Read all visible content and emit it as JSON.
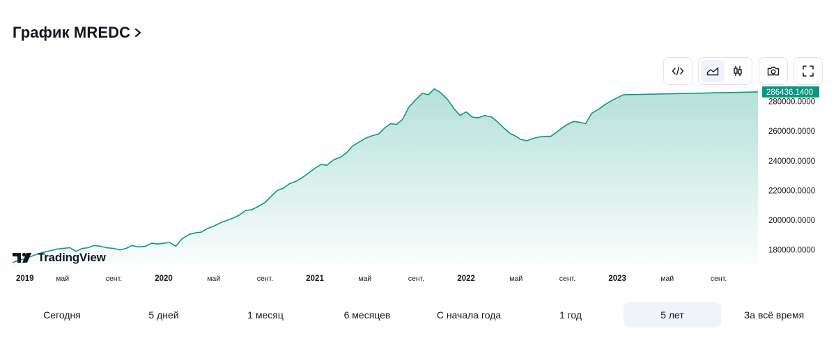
{
  "header": {
    "title": "График MREDC"
  },
  "toolbar": {
    "buttons": [
      {
        "name": "embed-button",
        "icon": "code-icon"
      },
      {
        "name": "area-chart-button",
        "icon": "area-chart-icon",
        "active": true
      },
      {
        "name": "candles-chart-button",
        "icon": "candles-icon"
      },
      {
        "name": "snapshot-button",
        "icon": "camera-icon"
      },
      {
        "name": "fullscreen-button",
        "icon": "fullscreen-icon"
      }
    ]
  },
  "branding": {
    "logo_text": "TradingView"
  },
  "chart_data": {
    "type": "area",
    "title": "График MREDC",
    "xlabel": "",
    "ylabel": "",
    "ylim": [
      170000,
      292000
    ],
    "xlim": [
      2019.0,
      2023.93
    ],
    "y_ticks": [
      180000,
      200000,
      220000,
      240000,
      260000,
      280000
    ],
    "y_tick_labels": [
      "180000.0000",
      "200000.0000",
      "220000.0000",
      "240000.0000",
      "260000.0000",
      "280000.0000"
    ],
    "x_ticks": [
      {
        "x": 2019.0,
        "label": "2019",
        "bold": true
      },
      {
        "x": 2019.33,
        "label": "май",
        "bold": false
      },
      {
        "x": 2019.67,
        "label": "сент.",
        "bold": false
      },
      {
        "x": 2020.0,
        "label": "2020",
        "bold": true
      },
      {
        "x": 2020.33,
        "label": "май",
        "bold": false
      },
      {
        "x": 2020.67,
        "label": "сент.",
        "bold": false
      },
      {
        "x": 2021.0,
        "label": "2021",
        "bold": true
      },
      {
        "x": 2021.33,
        "label": "май",
        "bold": false
      },
      {
        "x": 2021.67,
        "label": "сент.",
        "bold": false
      },
      {
        "x": 2022.0,
        "label": "2022",
        "bold": true
      },
      {
        "x": 2022.33,
        "label": "май",
        "bold": false
      },
      {
        "x": 2022.67,
        "label": "сент.",
        "bold": false
      },
      {
        "x": 2023.0,
        "label": "2023",
        "bold": true
      },
      {
        "x": 2023.33,
        "label": "май",
        "bold": false
      },
      {
        "x": 2023.67,
        "label": "сент.",
        "bold": false
      }
    ],
    "last_value_label": "286436.1400",
    "line_color": "#089981",
    "series": [
      {
        "x": [
          2019.0,
          2019.04,
          2019.08,
          2019.12,
          2019.17,
          2019.21,
          2019.25,
          2019.29,
          2019.33,
          2019.38,
          2019.42,
          2019.46,
          2019.5,
          2019.54,
          2019.58,
          2019.62,
          2019.67,
          2019.71,
          2019.75,
          2019.79,
          2019.83,
          2019.88,
          2019.92,
          2019.96,
          2020.0,
          2020.04,
          2020.08,
          2020.12,
          2020.17,
          2020.21,
          2020.25,
          2020.29,
          2020.33,
          2020.38,
          2020.42,
          2020.46,
          2020.5,
          2020.54,
          2020.58,
          2020.62,
          2020.67,
          2020.71,
          2020.75,
          2020.79,
          2020.83,
          2020.88,
          2020.92,
          2020.96,
          2021.0,
          2021.04,
          2021.08,
          2021.12,
          2021.17,
          2021.21,
          2021.25,
          2021.29,
          2021.33,
          2021.38,
          2021.42,
          2021.46,
          2021.5,
          2021.54,
          2021.58,
          2021.62,
          2021.67,
          2021.71,
          2021.75,
          2021.79,
          2021.83,
          2021.88,
          2021.92,
          2021.96,
          2022.0,
          2022.04,
          2022.08,
          2022.12,
          2022.17,
          2022.21,
          2022.25,
          2022.29,
          2022.33,
          2022.36,
          2022.4,
          2022.44,
          2022.48,
          2022.52,
          2022.56,
          2022.6,
          2022.64,
          2022.67,
          2022.71,
          2022.75,
          2022.79,
          2022.83,
          2022.88,
          2022.92,
          2022.96,
          2023.0,
          2023.04,
          2023.08,
          2023.12,
          2023.17,
          2023.21,
          2023.25,
          2023.29,
          2023.33,
          2023.38,
          2023.42,
          2023.46,
          2023.5,
          2023.54,
          2023.58,
          2023.62,
          2023.67,
          2023.71,
          2023.75,
          2023.79,
          2023.83,
          2023.88,
          2023.93
        ],
        "values": [
          171500,
          173000,
          174000,
          175500,
          177500,
          178500,
          179500,
          180500,
          181000,
          181500,
          179000,
          181000,
          181500,
          183000,
          182500,
          181500,
          181000,
          180000,
          181000,
          183000,
          182000,
          182500,
          184500,
          184000,
          184500,
          185000,
          182500,
          187500,
          190500,
          191500,
          192000,
          194500,
          196000,
          198500,
          200000,
          201500,
          203500,
          206500,
          207000,
          209000,
          212000,
          216000,
          220000,
          221500,
          224500,
          226500,
          229000,
          232000,
          235000,
          237500,
          237000,
          240500,
          242500,
          245500,
          250000,
          252500,
          255000,
          257000,
          258000,
          262000,
          265000,
          264500,
          268000,
          276000,
          281500,
          285500,
          284500,
          288500,
          286000,
          281000,
          275000,
          270500,
          273000,
          269500,
          269000,
          270500,
          269500,
          266000,
          262000,
          258500,
          256500,
          254500,
          253500,
          255000,
          256000,
          256500,
          256500,
          259500,
          262500,
          264500,
          266500,
          266000,
          265000,
          272000,
          275000,
          278000,
          280500,
          282500,
          284500,
          286436,
          286436,
          286436,
          286436,
          286436,
          286436,
          286436,
          286436,
          286436,
          286436,
          286436,
          286436,
          286436,
          286436,
          286436,
          286436,
          286436,
          286436,
          286436,
          286436,
          286436
        ]
      }
    ]
  },
  "ranges": {
    "items": [
      "Сегодня",
      "5 дней",
      "1 месяц",
      "6 месяцев",
      "С начала года",
      "1 год",
      "5 лет",
      "За всё время"
    ],
    "active_index": 6
  }
}
